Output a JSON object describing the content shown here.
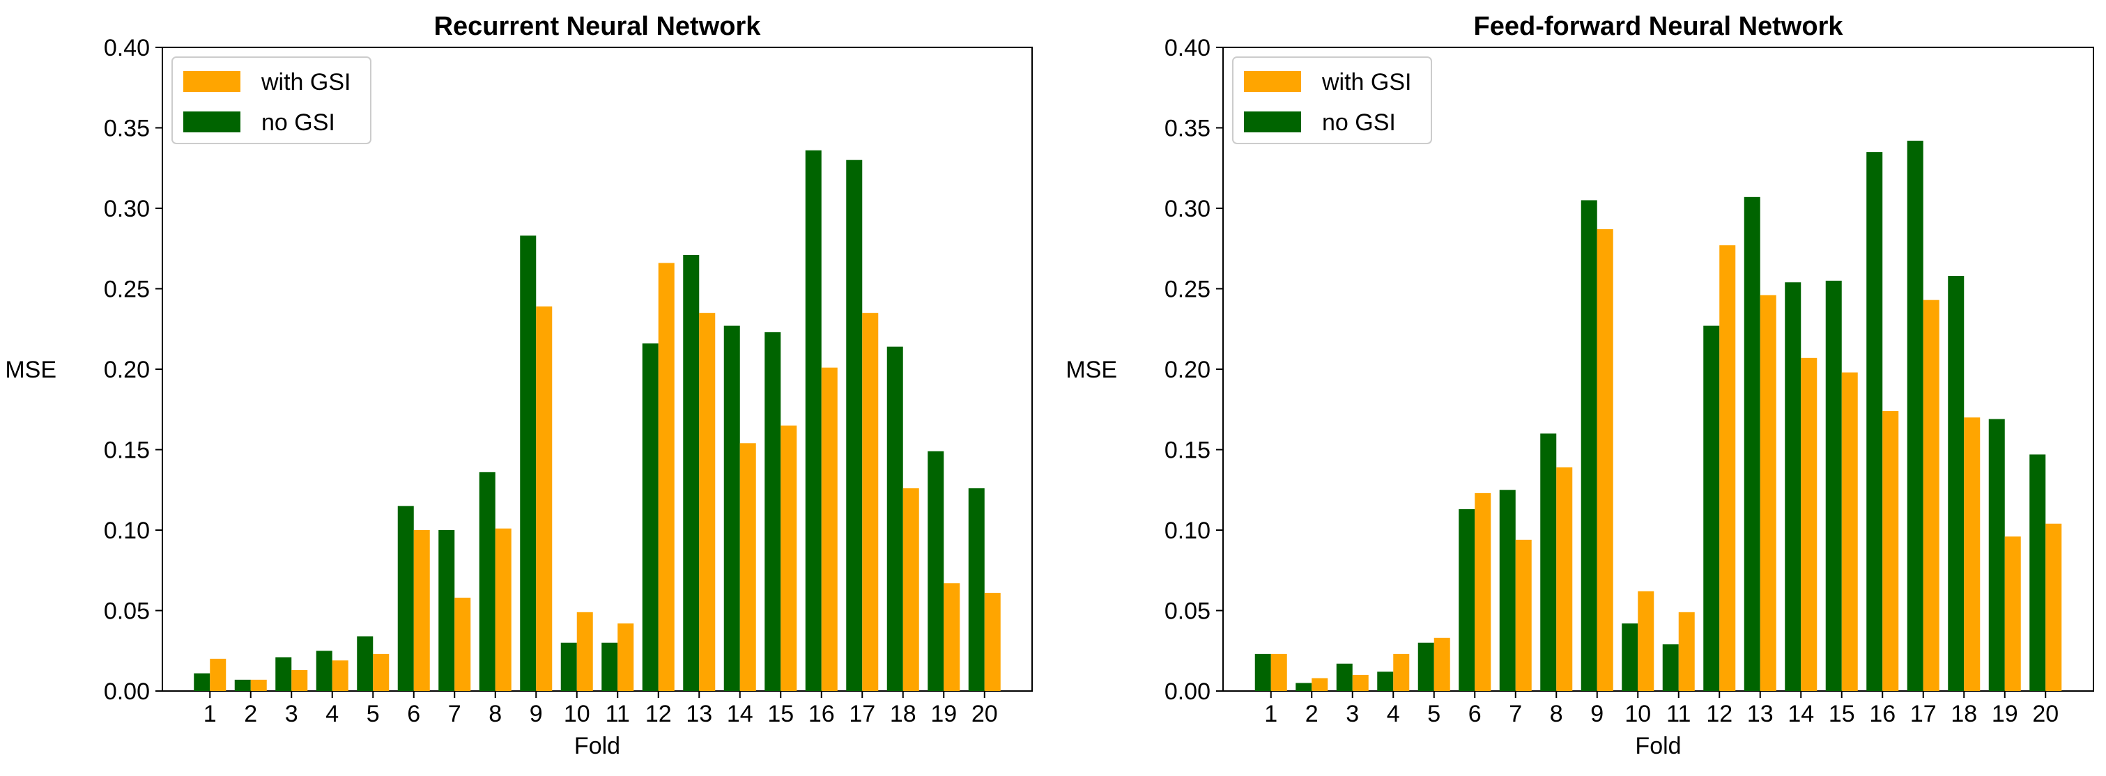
{
  "chart_data": [
    {
      "type": "bar",
      "title": "Recurrent Neural Network",
      "xlabel": "Fold",
      "ylabel": "MSE",
      "ylim": [
        0,
        0.4
      ],
      "yticks": [
        "0.00",
        "0.05",
        "0.10",
        "0.15",
        "0.20",
        "0.25",
        "0.30",
        "0.35",
        "0.40"
      ],
      "categories": [
        "1",
        "2",
        "3",
        "4",
        "5",
        "6",
        "7",
        "8",
        "9",
        "10",
        "11",
        "12",
        "13",
        "14",
        "15",
        "16",
        "17",
        "18",
        "19",
        "20"
      ],
      "legend_position": "top-left",
      "grid": false,
      "series": [
        {
          "name": "no GSI",
          "color": "#006400",
          "values": [
            0.011,
            0.007,
            0.021,
            0.025,
            0.034,
            0.115,
            0.1,
            0.136,
            0.283,
            0.03,
            0.03,
            0.216,
            0.271,
            0.227,
            0.223,
            0.336,
            0.33,
            0.214,
            0.149,
            0.126
          ]
        },
        {
          "name": "with GSI",
          "color": "#FFA500",
          "values": [
            0.02,
            0.007,
            0.013,
            0.019,
            0.023,
            0.1,
            0.058,
            0.101,
            0.239,
            0.049,
            0.042,
            0.266,
            0.235,
            0.154,
            0.165,
            0.201,
            0.235,
            0.126,
            0.067,
            0.061
          ]
        }
      ]
    },
    {
      "type": "bar",
      "title": "Feed-forward Neural Network",
      "xlabel": "Fold",
      "ylabel": "MSE",
      "ylim": [
        0,
        0.4
      ],
      "yticks": [
        "0.00",
        "0.05",
        "0.10",
        "0.15",
        "0.20",
        "0.25",
        "0.30",
        "0.35",
        "0.40"
      ],
      "categories": [
        "1",
        "2",
        "3",
        "4",
        "5",
        "6",
        "7",
        "8",
        "9",
        "10",
        "11",
        "12",
        "13",
        "14",
        "15",
        "16",
        "17",
        "18",
        "19",
        "20"
      ],
      "legend_position": "top-left",
      "grid": false,
      "series": [
        {
          "name": "no GSI",
          "color": "#006400",
          "values": [
            0.023,
            0.005,
            0.017,
            0.012,
            0.03,
            0.113,
            0.125,
            0.16,
            0.305,
            0.042,
            0.029,
            0.227,
            0.307,
            0.254,
            0.255,
            0.335,
            0.342,
            0.258,
            0.169,
            0.147
          ]
        },
        {
          "name": "with GSI",
          "color": "#FFA500",
          "values": [
            0.023,
            0.008,
            0.01,
            0.023,
            0.033,
            0.123,
            0.094,
            0.139,
            0.287,
            0.062,
            0.049,
            0.277,
            0.246,
            0.207,
            0.198,
            0.174,
            0.243,
            0.17,
            0.096,
            0.104
          ]
        }
      ]
    }
  ]
}
